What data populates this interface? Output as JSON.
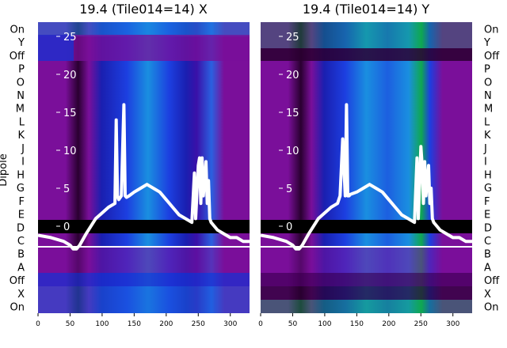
{
  "chart_data": {
    "type": "heatmap",
    "xlabel": "",
    "ylabel": "Dipole",
    "x_ticks": [
      0,
      50,
      100,
      150,
      200,
      250,
      300
    ],
    "x_range": [
      0,
      330
    ],
    "y_ticks": [
      0,
      5,
      10,
      15,
      20,
      25
    ],
    "dipole_labels": [
      "On",
      "X",
      "Off",
      "A",
      "B",
      "C",
      "D",
      "E",
      "F",
      "G",
      "H",
      "I",
      "J",
      "K",
      "L",
      "M",
      "N",
      "O",
      "P",
      "Off",
      "Y",
      "On"
    ],
    "panels": [
      {
        "title": "19.4 (Tile014=14) X",
        "series": [
          {
            "x": [
              0,
              20,
              40,
              50,
              55,
              60,
              65,
              75,
              90,
              110,
              120,
              122,
              124,
              126,
              130,
              134,
              136,
              138,
              142,
              150,
              160,
              170,
              180,
              190,
              200,
              210,
              220,
              230,
              240,
              244,
              246,
              250,
              252,
              254,
              256,
              258,
              262,
              264,
              266,
              268,
              270,
              275,
              280,
              290,
              300,
              310,
              320,
              330
            ],
            "y": [
              -1.2,
              -1.5,
              -2.0,
              -2.5,
              -3.0,
              -3.0,
              -2.5,
              -1.0,
              1.0,
              2.5,
              3.0,
              14.0,
              4.0,
              3.5,
              4.0,
              16.0,
              4.0,
              3.8,
              4.0,
              4.5,
              5.0,
              5.5,
              5.0,
              4.5,
              3.5,
              2.5,
              1.5,
              1.0,
              0.5,
              7.0,
              1.0,
              8.0,
              9.0,
              3.0,
              9.0,
              4.0,
              8.5,
              3.0,
              6.0,
              1.0,
              0.5,
              0.0,
              -0.5,
              -1.0,
              -1.5,
              -1.5,
              -2.0,
              -2.0
            ]
          }
        ]
      },
      {
        "title": "19.4 (Tile014=14) Y",
        "series": [
          {
            "x": [
              0,
              20,
              40,
              50,
              55,
              60,
              65,
              75,
              90,
              110,
              120,
              122,
              124,
              128,
              132,
              134,
              136,
              138,
              140,
              150,
              160,
              170,
              180,
              190,
              200,
              210,
              220,
              230,
              240,
              244,
              246,
              250,
              252,
              254,
              256,
              258,
              262,
              264,
              266,
              268,
              270,
              275,
              280,
              290,
              300,
              310,
              320,
              330
            ],
            "y": [
              -1.2,
              -1.5,
              -2.0,
              -2.5,
              -3.0,
              -3.0,
              -2.5,
              -1.0,
              1.0,
              2.5,
              3.0,
              3.5,
              4.0,
              11.5,
              4.0,
              16.0,
              4.0,
              4.0,
              4.2,
              4.5,
              5.0,
              5.5,
              5.0,
              4.5,
              3.5,
              2.5,
              1.5,
              1.0,
              0.5,
              9.0,
              1.0,
              10.5,
              8.0,
              3.0,
              8.5,
              4.0,
              8.0,
              3.0,
              5.0,
              1.0,
              0.5,
              0.0,
              -0.5,
              -1.0,
              -1.5,
              -1.5,
              -2.0,
              -2.0
            ]
          }
        ]
      }
    ],
    "colors": {
      "purple": "#7a0f9a",
      "blue": "#1c3fe0",
      "cyan": "#1a8fe0",
      "green": "#0fa850",
      "dark": "#2a0030",
      "black": "#000000",
      "white": "#ffffff"
    }
  }
}
